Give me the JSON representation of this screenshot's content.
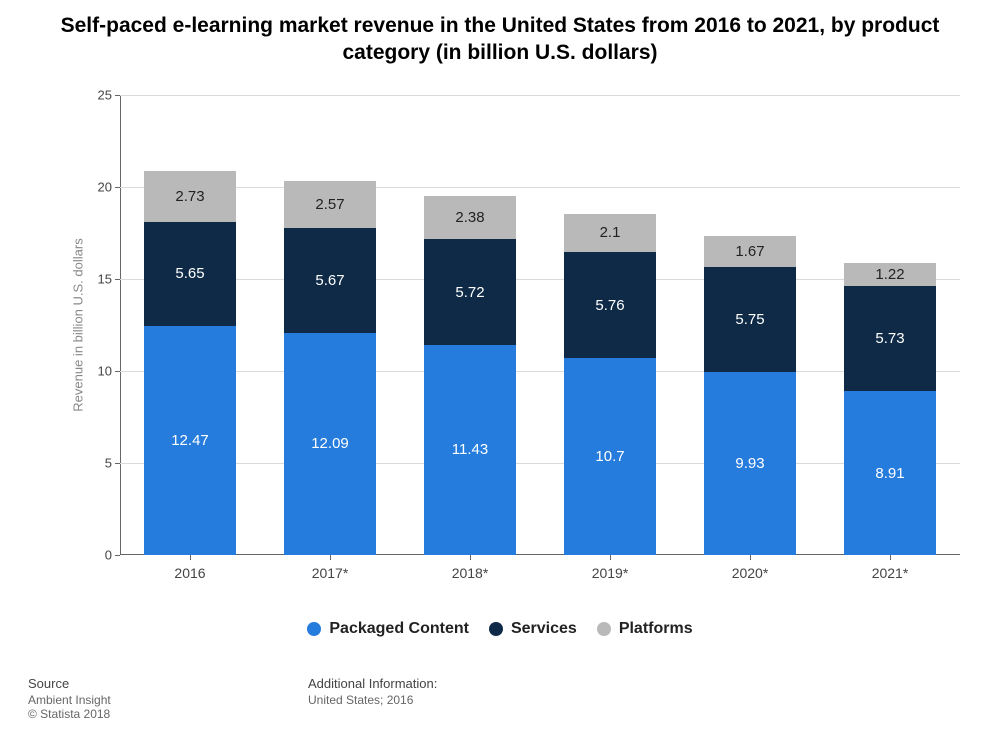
{
  "title": "Self-paced e-learning market revenue in the United States from 2016 to 2021, by product category (in billion U.S. dollars)",
  "title_fontsize": 21,
  "chart": {
    "type": "stacked-bar",
    "background_color": "#ffffff",
    "grid_color": "#d9d9d9",
    "axis_color": "#666666",
    "ylabel": "Revenue in billion U.S. dollars",
    "ylabel_fontsize": 13,
    "ylabel_color": "#888888",
    "ylim": [
      0,
      25
    ],
    "ytick_step": 5,
    "yticks": [
      0,
      5,
      10,
      15,
      20,
      25
    ],
    "categories": [
      "2016",
      "2017*",
      "2018*",
      "2019*",
      "2020*",
      "2021*"
    ],
    "xtick_fontsize": 14,
    "xtick_color": "#444444",
    "bar_width_ratio": 0.66,
    "series": [
      {
        "name": "Packaged Content",
        "color": "#267cdc",
        "values": [
          12.47,
          12.09,
          11.43,
          10.7,
          9.93,
          8.91
        ]
      },
      {
        "name": "Services",
        "color": "#0e2a47",
        "values": [
          5.65,
          5.67,
          5.72,
          5.76,
          5.75,
          5.73
        ]
      },
      {
        "name": "Platforms",
        "color": "#b9b9b9",
        "values": [
          2.73,
          2.57,
          2.38,
          2.1,
          1.67,
          1.22
        ],
        "label_color": "#222222"
      }
    ],
    "value_label_fontsize": 15,
    "value_label_color": "#ffffff"
  },
  "legend": {
    "items": [
      {
        "label": "Packaged Content",
        "color": "#267cdc"
      },
      {
        "label": "Services",
        "color": "#0e2a47"
      },
      {
        "label": "Platforms",
        "color": "#b9b9b9"
      }
    ],
    "fontsize": 16
  },
  "footer": {
    "source_title": "Source",
    "source_lines": [
      "Ambient Insight",
      "© Statista 2018"
    ],
    "addl_title": "Additional Information:",
    "addl_lines": [
      "United States; 2016"
    ]
  }
}
